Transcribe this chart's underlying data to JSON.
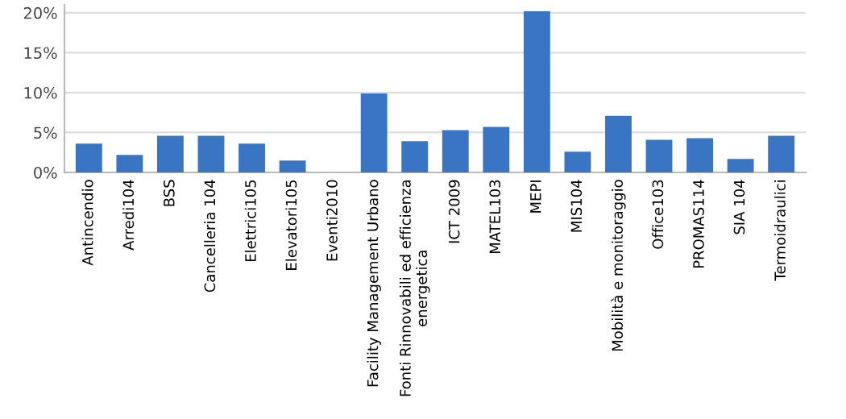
{
  "chart_data": {
    "type": "bar",
    "categories": [
      "Antincendio",
      "Arredi104",
      "BSS",
      "Cancelleria 104",
      "Elettrici105",
      "Elevatori105",
      "Eventi2010",
      "Facility Management Urbano",
      "Fonti Rinnovabili ed efficienza\nenergetica",
      "ICT 2009",
      "MATEL103",
      "MEPI",
      "MIS104",
      "Mobilità e monitoraggio",
      "Office103",
      "PROMAS114",
      "SIA 104",
      "Termoidraulici"
    ],
    "values": [
      3.6,
      2.2,
      4.6,
      4.6,
      3.6,
      1.5,
      null,
      9.9,
      3.9,
      5.3,
      5.7,
      20.2,
      2.6,
      7.1,
      4.1,
      4.3,
      1.7,
      4.6
    ],
    "color": "#3a75c4",
    "ylim": [
      0,
      21
    ],
    "yticks": [
      {
        "value": 0,
        "label": "0%"
      },
      {
        "value": 5,
        "label": "5%"
      },
      {
        "value": 10,
        "label": "10%"
      },
      {
        "value": 15,
        "label": "15%"
      },
      {
        "value": 20,
        "label": "20%"
      }
    ],
    "grid": "y",
    "legend": false
  }
}
